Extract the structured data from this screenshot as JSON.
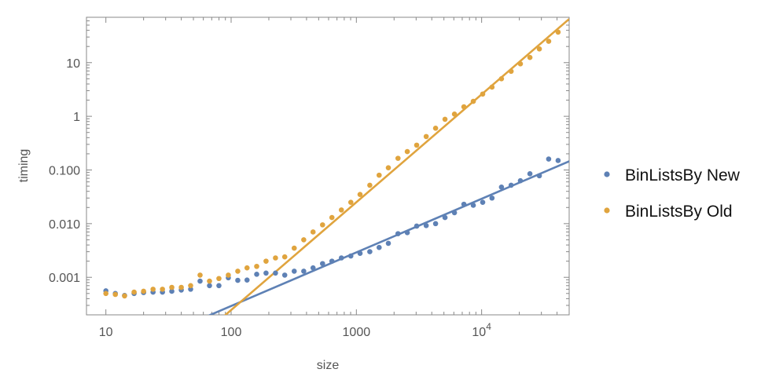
{
  "chart_data": {
    "type": "scatter",
    "xlabel": "size",
    "ylabel": "timing",
    "xscale": "log",
    "yscale": "log",
    "xlim": [
      7,
      50000
    ],
    "ylim": [
      0.0002,
      70
    ],
    "x_ticks": [
      {
        "value": 10,
        "label": "10"
      },
      {
        "value": 100,
        "label": "100"
      },
      {
        "value": 1000,
        "label": "1000"
      },
      {
        "value": 10000,
        "label": "10",
        "exponent": "4"
      }
    ],
    "y_ticks": [
      {
        "value": 0.001,
        "label": "0.001"
      },
      {
        "value": 0.01,
        "label": "0.010"
      },
      {
        "value": 0.1,
        "label": "0.100"
      },
      {
        "value": 1,
        "label": "1"
      },
      {
        "value": 10,
        "label": "10"
      }
    ],
    "legend_position": "right",
    "series": [
      {
        "name": "BinListsBy New",
        "color": "#5E81B5",
        "points": [
          [
            10,
            0.00056
          ],
          [
            11.9,
            0.0005
          ],
          [
            14.1,
            0.00046
          ],
          [
            16.8,
            0.0005
          ],
          [
            20,
            0.00052
          ],
          [
            23.8,
            0.00053
          ],
          [
            28.3,
            0.00053
          ],
          [
            33.6,
            0.00055
          ],
          [
            40,
            0.00058
          ],
          [
            47.5,
            0.0006
          ],
          [
            56.5,
            0.00085
          ],
          [
            67.2,
            0.0007
          ],
          [
            79.9,
            0.0007
          ],
          [
            95,
            0.00098
          ],
          [
            113,
            0.00088
          ],
          [
            134,
            0.00089
          ],
          [
            160,
            0.00114
          ],
          [
            190,
            0.0012
          ],
          [
            226,
            0.0012
          ],
          [
            268,
            0.0011
          ],
          [
            319,
            0.0013
          ],
          [
            380,
            0.0013
          ],
          [
            451,
            0.0015
          ],
          [
            537,
            0.0018
          ],
          [
            638,
            0.002
          ],
          [
            759,
            0.0023
          ],
          [
            903,
            0.0025
          ],
          [
            1070,
            0.0028
          ],
          [
            1280,
            0.003
          ],
          [
            1520,
            0.0036
          ],
          [
            1800,
            0.0043
          ],
          [
            2150,
            0.0065
          ],
          [
            2550,
            0.0068
          ],
          [
            3030,
            0.009
          ],
          [
            3610,
            0.0092
          ],
          [
            4290,
            0.01
          ],
          [
            5100,
            0.013
          ],
          [
            6070,
            0.016
          ],
          [
            7220,
            0.023
          ],
          [
            8580,
            0.022
          ],
          [
            10200,
            0.025
          ],
          [
            12100,
            0.03
          ],
          [
            14400,
            0.048
          ],
          [
            17200,
            0.052
          ],
          [
            20400,
            0.063
          ],
          [
            24300,
            0.085
          ],
          [
            28900,
            0.078
          ],
          [
            34300,
            0.16
          ],
          [
            40800,
            0.15
          ]
        ],
        "fit_line": [
          [
            65,
            0.00019
          ],
          [
            50000,
            0.145
          ]
        ]
      },
      {
        "name": "BinListsBy Old",
        "color": "#E0A43E",
        "points": [
          [
            10,
            0.0005
          ],
          [
            11.9,
            0.00048
          ],
          [
            14.1,
            0.00045
          ],
          [
            16.8,
            0.00053
          ],
          [
            20,
            0.00055
          ],
          [
            23.8,
            0.0006
          ],
          [
            28.3,
            0.0006
          ],
          [
            33.6,
            0.00065
          ],
          [
            40,
            0.00065
          ],
          [
            47.5,
            0.0007
          ],
          [
            56.5,
            0.0011
          ],
          [
            67.2,
            0.00085
          ],
          [
            79.9,
            0.00095
          ],
          [
            95,
            0.0011
          ],
          [
            113,
            0.0013
          ],
          [
            134,
            0.0015
          ],
          [
            160,
            0.0016
          ],
          [
            190,
            0.002
          ],
          [
            226,
            0.0023
          ],
          [
            268,
            0.0024
          ],
          [
            319,
            0.0035
          ],
          [
            380,
            0.005
          ],
          [
            451,
            0.007
          ],
          [
            537,
            0.0095
          ],
          [
            638,
            0.013
          ],
          [
            759,
            0.018
          ],
          [
            903,
            0.025
          ],
          [
            1070,
            0.035
          ],
          [
            1280,
            0.052
          ],
          [
            1520,
            0.08
          ],
          [
            1800,
            0.11
          ],
          [
            2150,
            0.165
          ],
          [
            2550,
            0.22
          ],
          [
            3030,
            0.29
          ],
          [
            3610,
            0.42
          ],
          [
            4290,
            0.6
          ],
          [
            5100,
            0.88
          ],
          [
            6070,
            1.1
          ],
          [
            7220,
            1.5
          ],
          [
            8580,
            1.9
          ],
          [
            10200,
            2.6
          ],
          [
            12100,
            3.5
          ],
          [
            14400,
            5.0
          ],
          [
            17200,
            6.9
          ],
          [
            20400,
            9.5
          ],
          [
            24300,
            12.5
          ],
          [
            28900,
            18
          ],
          [
            34300,
            25
          ],
          [
            40800,
            37
          ]
        ],
        "fit_line": [
          [
            88,
            0.00019
          ],
          [
            50000,
            65
          ]
        ]
      }
    ]
  }
}
